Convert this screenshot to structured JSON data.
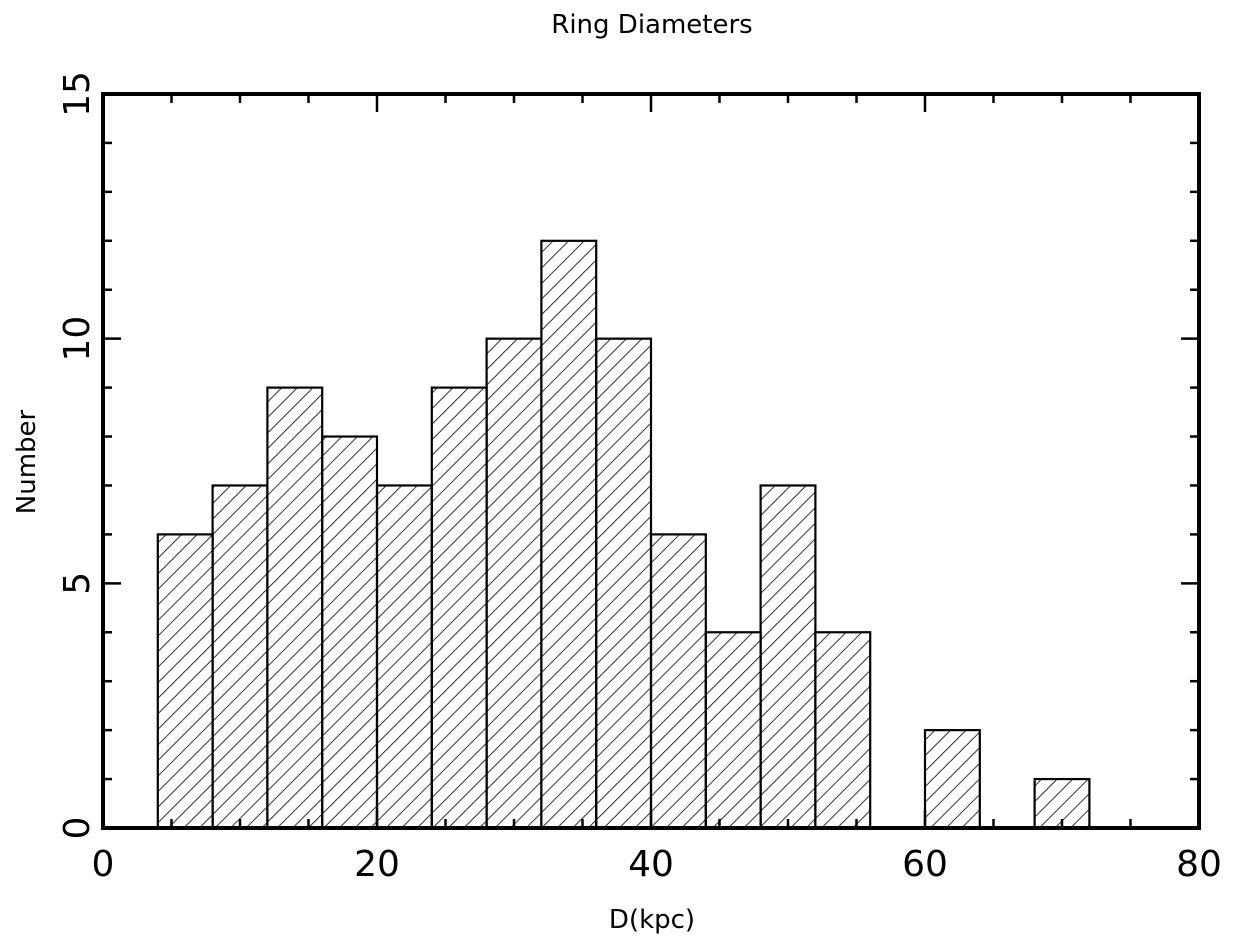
{
  "chart_data": {
    "type": "bar",
    "histogram": true,
    "title": "Ring Diameters",
    "xlabel": "D(kpc)",
    "ylabel": "Number",
    "xlim": [
      0,
      80
    ],
    "ylim": [
      0,
      15
    ],
    "xticks": [
      0,
      20,
      40,
      60,
      80
    ],
    "yticks": [
      0,
      5,
      10,
      15
    ],
    "bin_width": 4,
    "bins": [
      {
        "x0": 4,
        "x1": 8,
        "value": 6
      },
      {
        "x0": 8,
        "x1": 12,
        "value": 7
      },
      {
        "x0": 12,
        "x1": 16,
        "value": 9
      },
      {
        "x0": 16,
        "x1": 20,
        "value": 8
      },
      {
        "x0": 20,
        "x1": 24,
        "value": 7
      },
      {
        "x0": 24,
        "x1": 28,
        "value": 9
      },
      {
        "x0": 28,
        "x1": 32,
        "value": 10
      },
      {
        "x0": 32,
        "x1": 36,
        "value": 12
      },
      {
        "x0": 36,
        "x1": 40,
        "value": 10
      },
      {
        "x0": 40,
        "x1": 44,
        "value": 6
      },
      {
        "x0": 44,
        "x1": 48,
        "value": 4
      },
      {
        "x0": 48,
        "x1": 52,
        "value": 7
      },
      {
        "x0": 52,
        "x1": 56,
        "value": 4
      },
      {
        "x0": 60,
        "x1": 64,
        "value": 2
      },
      {
        "x0": 68,
        "x1": 72,
        "value": 1
      }
    ],
    "fill": "diagonal-hatch",
    "grid": false,
    "colors": {
      "line": "#000000",
      "background": "#ffffff"
    }
  }
}
